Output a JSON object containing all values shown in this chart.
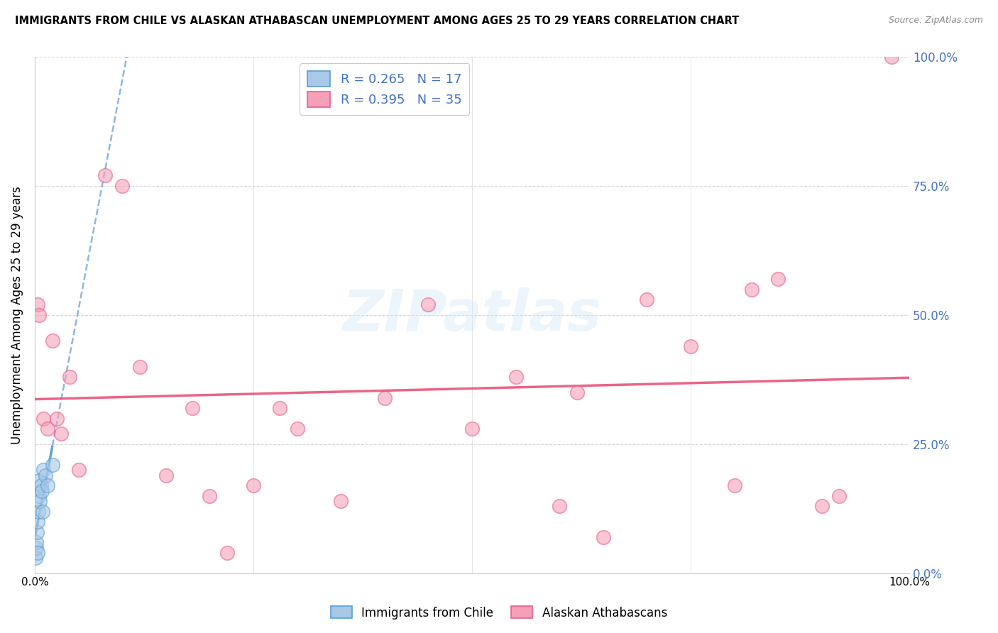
{
  "title": "IMMIGRANTS FROM CHILE VS ALASKAN ATHABASCAN UNEMPLOYMENT AMONG AGES 25 TO 29 YEARS CORRELATION CHART",
  "source": "Source: ZipAtlas.com",
  "ylabel": "Unemployment Among Ages 25 to 29 years",
  "xlim": [
    0,
    100
  ],
  "ylim": [
    0,
    100
  ],
  "yticks": [
    0,
    25,
    50,
    75,
    100
  ],
  "ytick_labels": [
    "0.0%",
    "25.0%",
    "50.0%",
    "75.0%",
    "100.0%"
  ],
  "legend_label1": "Immigrants from Chile",
  "legend_label2": "Alaskan Athabascans",
  "R1": 0.265,
  "N1": 17,
  "R2": 0.395,
  "N2": 35,
  "color_blue_fill": "#a8c8e8",
  "color_blue_edge": "#5a9fd4",
  "color_blue_line": "#5b9bd5",
  "color_pink_fill": "#f4a0b8",
  "color_pink_edge": "#e8608a",
  "color_pink_line": "#e8547a",
  "background_color": "#ffffff",
  "watermark": "ZIPatlas",
  "chile_x": [
    0.1,
    0.15,
    0.2,
    0.25,
    0.3,
    0.35,
    0.4,
    0.5,
    0.5,
    0.6,
    0.7,
    0.8,
    0.9,
    1.0,
    1.2,
    1.5,
    2.0
  ],
  "chile_y": [
    3,
    5,
    6,
    8,
    10,
    4,
    12,
    15,
    18,
    14,
    17,
    16,
    12,
    20,
    19,
    17,
    21
  ],
  "ath_x": [
    0.3,
    0.5,
    1.0,
    1.5,
    2.0,
    2.5,
    3.0,
    4.0,
    5.0,
    8.0,
    10.0,
    12.0,
    15.0,
    18.0,
    20.0,
    22.0,
    25.0,
    28.0,
    30.0,
    35.0,
    40.0,
    45.0,
    50.0,
    55.0,
    60.0,
    62.0,
    65.0,
    70.0,
    75.0,
    80.0,
    82.0,
    85.0,
    90.0,
    92.0,
    98.0
  ],
  "ath_y": [
    52,
    50,
    30,
    28,
    45,
    30,
    27,
    38,
    20,
    77,
    75,
    40,
    19,
    32,
    15,
    4,
    17,
    32,
    28,
    14,
    34,
    52,
    28,
    38,
    13,
    35,
    7,
    53,
    44,
    17,
    55,
    57,
    13,
    15,
    100
  ]
}
